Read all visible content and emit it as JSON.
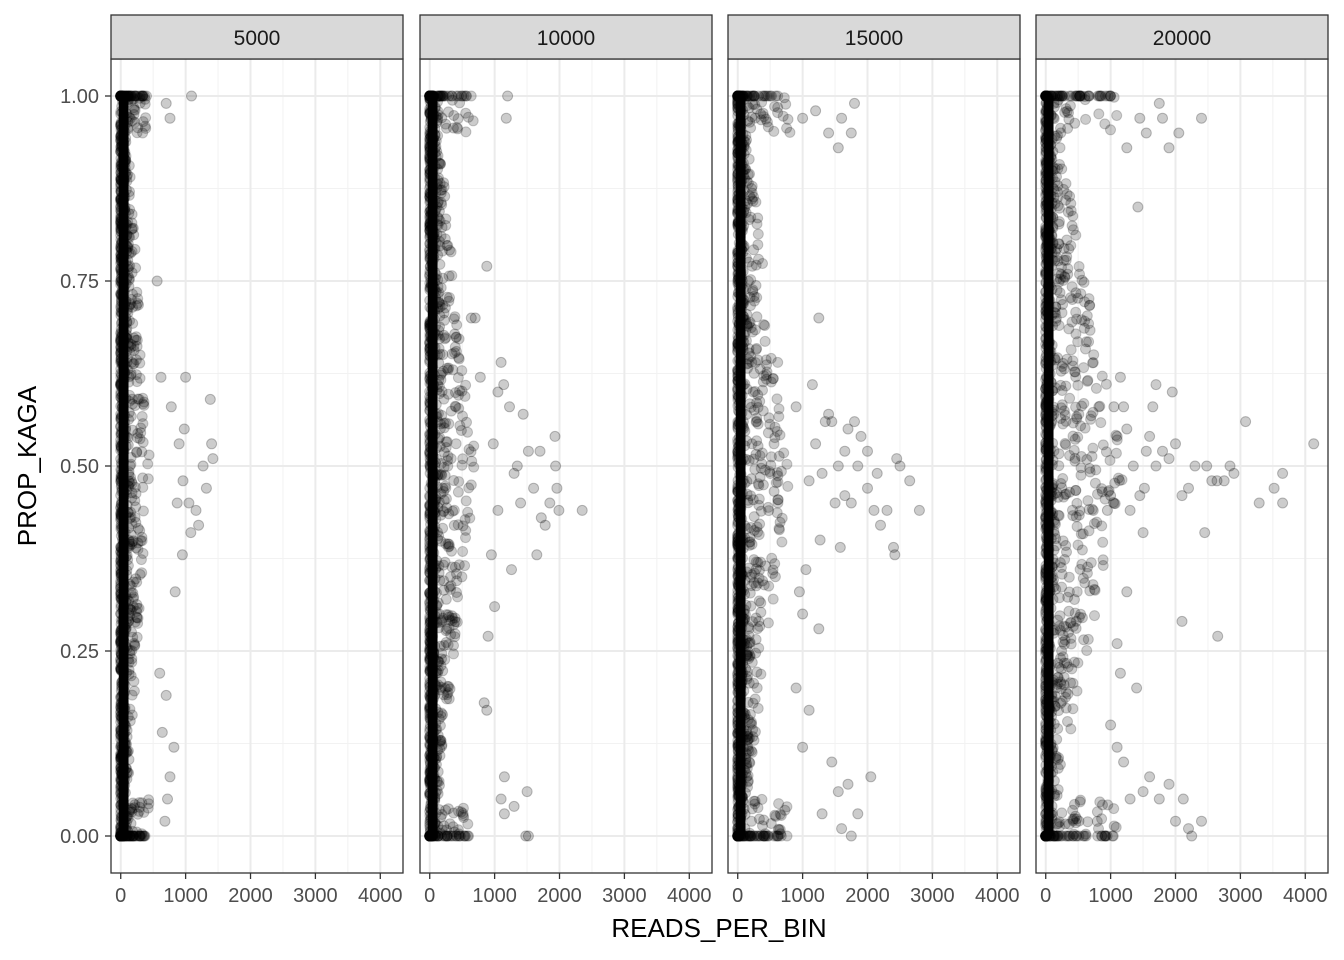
{
  "chart_data": {
    "type": "scatter",
    "facet_variable_values": [
      "5000",
      "10000",
      "15000",
      "20000"
    ],
    "xlabel": "READS_PER_BIN",
    "ylabel": "PROP_KAGA",
    "xlim": [
      -150,
      4350
    ],
    "ylim": [
      -0.05,
      1.05
    ],
    "x_ticks": [
      0,
      1000,
      2000,
      3000,
      4000
    ],
    "x_tick_labels": [
      "0",
      "1000",
      "2000",
      "3000",
      "4000"
    ],
    "y_ticks": [
      0,
      0.25,
      0.5,
      0.75,
      1.0
    ],
    "y_tick_labels": [
      "0.00",
      "0.25",
      "0.50",
      "0.75",
      "1.00"
    ],
    "grid": true,
    "point_color": "#000000",
    "point_alpha": 0.2,
    "panels": [
      {
        "name": "5000",
        "max_x": 1400,
        "points": [
          [
            1090,
            1.0
          ],
          [
            760,
            0.97
          ],
          [
            700,
            0.99
          ],
          [
            1380,
            0.59
          ],
          [
            1000,
            0.62
          ],
          [
            1420,
            0.51
          ],
          [
            1400,
            0.53
          ],
          [
            1270,
            0.5
          ],
          [
            1320,
            0.47
          ],
          [
            1160,
            0.44
          ],
          [
            1200,
            0.42
          ],
          [
            1080,
            0.41
          ],
          [
            960,
            0.48
          ],
          [
            840,
            0.33
          ],
          [
            780,
            0.58
          ],
          [
            820,
            0.12
          ],
          [
            760,
            0.08
          ],
          [
            700,
            0.19
          ],
          [
            900,
            0.53
          ],
          [
            620,
            0.62
          ],
          [
            560,
            0.75
          ],
          [
            1050,
            0.45
          ],
          [
            980,
            0.55
          ],
          [
            870,
            0.45
          ],
          [
            950,
            0.38
          ],
          [
            640,
            0.14
          ],
          [
            600,
            0.22
          ],
          [
            720,
            0.05
          ],
          [
            680,
            0.02
          ]
        ]
      },
      {
        "name": "10000",
        "max_x": 2350,
        "points": [
          [
            1200,
            1.0
          ],
          [
            1180,
            0.97
          ],
          [
            2350,
            0.44
          ],
          [
            1990,
            0.44
          ],
          [
            1930,
            0.54
          ],
          [
            1940,
            0.5
          ],
          [
            1960,
            0.47
          ],
          [
            1850,
            0.45
          ],
          [
            1780,
            0.42
          ],
          [
            1720,
            0.43
          ],
          [
            1600,
            0.47
          ],
          [
            1520,
            0.52
          ],
          [
            1440,
            0.57
          ],
          [
            1300,
            0.49
          ],
          [
            1260,
            0.36
          ],
          [
            1140,
            0.61
          ],
          [
            1100,
            0.64
          ],
          [
            1000,
            0.31
          ],
          [
            950,
            0.38
          ],
          [
            900,
            0.27
          ],
          [
            880,
            0.77
          ],
          [
            700,
            0.7
          ],
          [
            640,
            0.7
          ],
          [
            1500,
            0.06
          ],
          [
            1150,
            0.08
          ],
          [
            1100,
            0.05
          ],
          [
            1300,
            0.04
          ],
          [
            1520,
            0.0
          ],
          [
            1480,
            0.0
          ],
          [
            840,
            0.18
          ],
          [
            880,
            0.17
          ],
          [
            1050,
            0.6
          ],
          [
            1350,
            0.5
          ],
          [
            1650,
            0.38
          ],
          [
            1700,
            0.52
          ],
          [
            780,
            0.62
          ],
          [
            1230,
            0.58
          ],
          [
            980,
            0.53
          ],
          [
            1400,
            0.45
          ],
          [
            1050,
            0.44
          ],
          [
            1150,
            0.03
          ]
        ]
      },
      {
        "name": "15000",
        "max_x": 2800,
        "points": [
          [
            1800,
            0.99
          ],
          [
            1750,
            0.95
          ],
          [
            1600,
            0.97
          ],
          [
            1200,
            0.98
          ],
          [
            2800,
            0.44
          ],
          [
            2650,
            0.48
          ],
          [
            2500,
            0.5
          ],
          [
            2450,
            0.51
          ],
          [
            2400,
            0.39
          ],
          [
            2420,
            0.38
          ],
          [
            2300,
            0.44
          ],
          [
            2200,
            0.42
          ],
          [
            2100,
            0.44
          ],
          [
            2000,
            0.52
          ],
          [
            1900,
            0.54
          ],
          [
            1800,
            0.56
          ],
          [
            1700,
            0.55
          ],
          [
            1650,
            0.46
          ],
          [
            1580,
            0.39
          ],
          [
            1500,
            0.45
          ],
          [
            1450,
            0.56
          ],
          [
            1400,
            0.57
          ],
          [
            1300,
            0.49
          ],
          [
            1270,
            0.4
          ],
          [
            1250,
            0.7
          ],
          [
            1150,
            0.61
          ],
          [
            1250,
            0.28
          ],
          [
            1050,
            0.36
          ],
          [
            1000,
            0.3
          ],
          [
            950,
            0.33
          ],
          [
            2050,
            0.08
          ],
          [
            1850,
            0.03
          ],
          [
            1750,
            0.0
          ],
          [
            1700,
            0.07
          ],
          [
            1600,
            0.01
          ],
          [
            1550,
            0.06
          ],
          [
            1450,
            0.1
          ],
          [
            1300,
            0.03
          ],
          [
            1100,
            0.17
          ],
          [
            1000,
            0.12
          ],
          [
            900,
            0.2
          ],
          [
            1850,
            0.5
          ],
          [
            2000,
            0.47
          ],
          [
            2150,
            0.49
          ],
          [
            1750,
            0.45
          ],
          [
            1650,
            0.52
          ],
          [
            1550,
            0.5
          ],
          [
            1350,
            0.56
          ],
          [
            1200,
            0.53
          ],
          [
            1100,
            0.48
          ],
          [
            900,
            0.58
          ],
          [
            1000,
            0.97
          ],
          [
            1400,
            0.95
          ],
          [
            1550,
            0.93
          ]
        ]
      },
      {
        "name": "20000",
        "max_x": 4150,
        "points": [
          [
            4130,
            0.53
          ],
          [
            3650,
            0.49
          ],
          [
            3650,
            0.45
          ],
          [
            3520,
            0.47
          ],
          [
            3290,
            0.45
          ],
          [
            3080,
            0.56
          ],
          [
            2900,
            0.49
          ],
          [
            2840,
            0.5
          ],
          [
            2750,
            0.48
          ],
          [
            2640,
            0.48
          ],
          [
            2560,
            0.48
          ],
          [
            2480,
            0.5
          ],
          [
            2450,
            0.41
          ],
          [
            2400,
            0.97
          ],
          [
            2650,
            0.27
          ],
          [
            2400,
            0.02
          ],
          [
            2250,
            0.0
          ],
          [
            2200,
            0.01
          ],
          [
            2100,
            0.29
          ],
          [
            2120,
            0.05
          ],
          [
            2050,
            0.95
          ],
          [
            1950,
            0.6
          ],
          [
            1900,
            0.93
          ],
          [
            1750,
            0.99
          ],
          [
            1800,
            0.97
          ],
          [
            1700,
            0.61
          ],
          [
            1650,
            0.58
          ],
          [
            1600,
            0.54
          ],
          [
            1550,
            0.52
          ],
          [
            1520,
            0.47
          ],
          [
            1500,
            0.41
          ],
          [
            1450,
            0.46
          ],
          [
            1400,
            0.2
          ],
          [
            1420,
            0.85
          ],
          [
            1300,
            0.44
          ],
          [
            1250,
            0.33
          ],
          [
            1150,
            0.22
          ],
          [
            1100,
            0.26
          ],
          [
            1500,
            0.06
          ],
          [
            1600,
            0.08
          ],
          [
            1750,
            0.05
          ],
          [
            1900,
            0.07
          ],
          [
            2000,
            0.02
          ],
          [
            1300,
            0.05
          ],
          [
            1200,
            0.1
          ],
          [
            1100,
            0.12
          ],
          [
            1000,
            0.15
          ],
          [
            2300,
            0.5
          ],
          [
            2200,
            0.47
          ],
          [
            2100,
            0.46
          ],
          [
            2000,
            0.53
          ],
          [
            1900,
            0.51
          ],
          [
            1800,
            0.52
          ],
          [
            1700,
            0.5
          ],
          [
            1350,
            0.5
          ],
          [
            1250,
            0.55
          ],
          [
            1200,
            0.58
          ],
          [
            1100,
            0.54
          ],
          [
            1050,
            0.58
          ],
          [
            1150,
            0.62
          ],
          [
            1000,
            0.46
          ],
          [
            950,
            0.44
          ],
          [
            1550,
            0.95
          ],
          [
            1450,
            0.97
          ],
          [
            1250,
            0.93
          ]
        ]
      }
    ]
  }
}
